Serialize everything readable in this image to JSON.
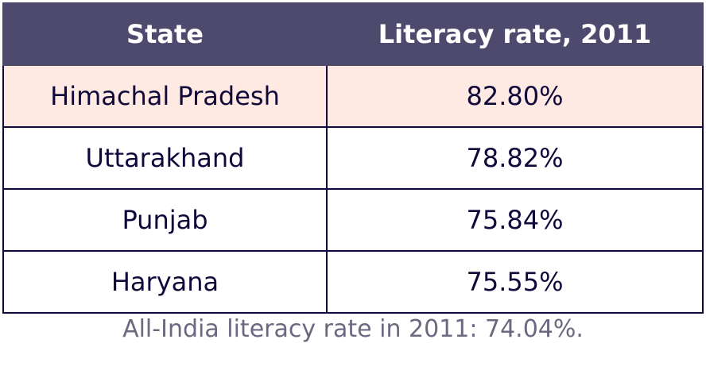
{
  "table": {
    "header": [
      "State",
      "Literacy rate, 2011"
    ],
    "rows": [
      [
        "Himachal Pradesh",
        "82.80%"
      ],
      [
        "Uttarakhand",
        "78.82%"
      ],
      [
        "Punjab",
        "75.84%"
      ],
      [
        "Haryana",
        "75.55%"
      ]
    ]
  },
  "caption": "All-India literacy rate in 2011: 74.04%."
}
